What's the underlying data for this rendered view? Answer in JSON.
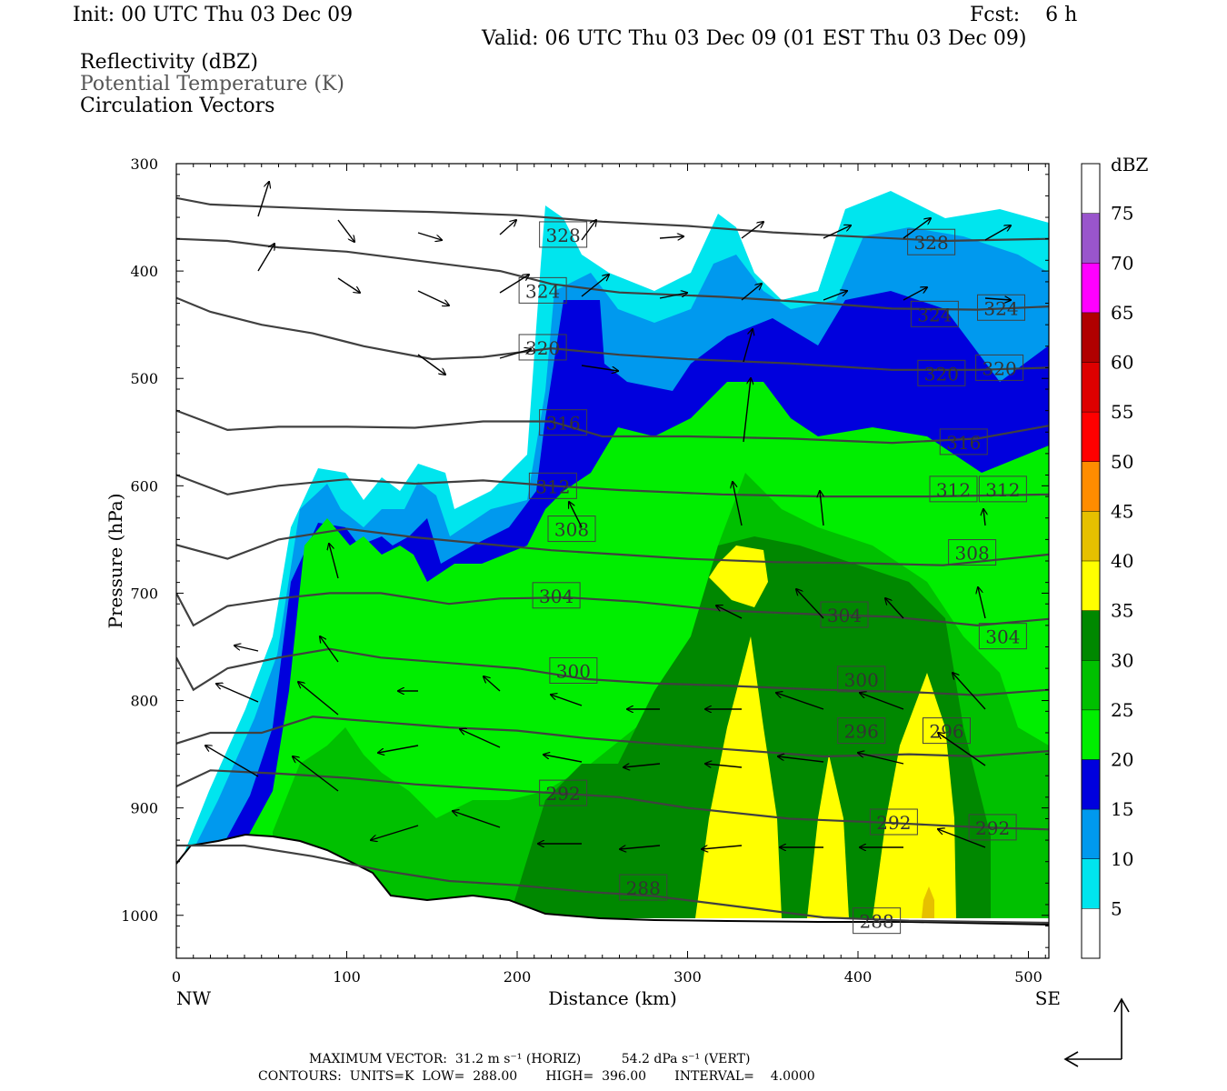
{
  "header": {
    "init": "Init: 00 UTC Thu 03 Dec 09",
    "fcst": "Fcst:    6 h",
    "valid": "Valid: 06 UTC Thu 03 Dec 09 (01 EST Thu 03 Dec 09)",
    "fields": [
      "Reflectivity (dBZ)",
      "Potential Temperature (K)",
      "Circulation Vectors"
    ],
    "field_colors": [
      "#000000",
      "#555555",
      "#000000"
    ]
  },
  "footer": {
    "line1": "MAXIMUM VECTOR:  31.2 m s⁻¹ (HORIZ)          54.2 dPa s⁻¹ (VERT)",
    "line2": "CONTOURS:  UNITS=K  LOW=  288.00       HIGH=  396.00       INTERVAL=    4.0000"
  },
  "chart_data": {
    "type": "cross-section",
    "xlabel": "Distance (km)",
    "ylabel": "Pressure (hPa)",
    "xlim": [
      0,
      512
    ],
    "ylim": [
      1040,
      300
    ],
    "x_ticks": [
      0,
      100,
      200,
      300,
      400,
      500
    ],
    "y_ticks": [
      300,
      400,
      500,
      600,
      700,
      800,
      900,
      1000
    ],
    "left_end_label": "NW",
    "right_end_label": "SE",
    "colorbar": {
      "title": "dBZ",
      "levels": [
        5,
        10,
        15,
        20,
        25,
        30,
        35,
        40,
        45,
        50,
        55,
        60,
        65,
        70,
        75
      ],
      "colors": [
        "#ffffff",
        "#00e5ee",
        "#0099ee",
        "#0000dd",
        "#00ee00",
        "#00c000",
        "#008800",
        "#ffff00",
        "#e6c000",
        "#ff8c00",
        "#ff0000",
        "#dd0000",
        "#b00000",
        "#ff00ff",
        "#9955cc",
        "#ffffff"
      ]
    },
    "theta_contours": [
      {
        "label": "328",
        "points": [
          [
            0,
            332
          ],
          [
            20,
            338
          ],
          [
            50,
            340
          ],
          [
            100,
            343
          ],
          [
            150,
            345
          ],
          [
            200,
            348
          ],
          [
            250,
            354
          ],
          [
            300,
            358
          ],
          [
            350,
            364
          ],
          [
            400,
            368
          ],
          [
            450,
            372
          ],
          [
            512,
            370
          ]
        ],
        "label_positions": [
          [
            227,
            366
          ],
          [
            443,
            373
          ]
        ]
      },
      {
        "label": "324",
        "points": [
          [
            0,
            370
          ],
          [
            30,
            372
          ],
          [
            60,
            378
          ],
          [
            100,
            382
          ],
          [
            150,
            392
          ],
          [
            190,
            400
          ],
          [
            220,
            412
          ],
          [
            260,
            420
          ],
          [
            320,
            424
          ],
          [
            380,
            430
          ],
          [
            420,
            435
          ],
          [
            470,
            436
          ],
          [
            512,
            433
          ]
        ],
        "label_positions": [
          [
            215,
            418
          ],
          [
            445,
            440
          ],
          [
            484,
            434
          ]
        ]
      },
      {
        "label": "320",
        "points": [
          [
            0,
            425
          ],
          [
            20,
            438
          ],
          [
            50,
            450
          ],
          [
            80,
            458
          ],
          [
            110,
            470
          ],
          [
            150,
            482
          ],
          [
            180,
            480
          ],
          [
            220,
            472
          ],
          [
            260,
            478
          ],
          [
            300,
            482
          ],
          [
            360,
            486
          ],
          [
            420,
            492
          ],
          [
            470,
            492
          ],
          [
            512,
            490
          ]
        ],
        "label_positions": [
          [
            215,
            471
          ],
          [
            449,
            495
          ],
          [
            483,
            490
          ]
        ]
      },
      {
        "label": "316",
        "points": [
          [
            0,
            530
          ],
          [
            30,
            548
          ],
          [
            60,
            545
          ],
          [
            100,
            545
          ],
          [
            140,
            546
          ],
          [
            180,
            540
          ],
          [
            220,
            540
          ],
          [
            250,
            554
          ],
          [
            300,
            554
          ],
          [
            360,
            556
          ],
          [
            420,
            560
          ],
          [
            470,
            556
          ],
          [
            512,
            544
          ]
        ],
        "label_positions": [
          [
            227,
            541
          ],
          [
            462,
            559
          ]
        ]
      },
      {
        "label": "312",
        "points": [
          [
            0,
            590
          ],
          [
            30,
            608
          ],
          [
            60,
            600
          ],
          [
            100,
            594
          ],
          [
            140,
            598
          ],
          [
            180,
            595
          ],
          [
            220,
            600
          ],
          [
            260,
            604
          ],
          [
            320,
            608
          ],
          [
            380,
            610
          ],
          [
            440,
            610
          ],
          [
            512,
            608
          ]
        ],
        "label_positions": [
          [
            221,
            600
          ],
          [
            456,
            603
          ],
          [
            485,
            603
          ]
        ]
      },
      {
        "label": "308",
        "points": [
          [
            0,
            655
          ],
          [
            30,
            668
          ],
          [
            60,
            650
          ],
          [
            100,
            640
          ],
          [
            140,
            648
          ],
          [
            180,
            654
          ],
          [
            220,
            660
          ],
          [
            260,
            664
          ],
          [
            300,
            668
          ],
          [
            350,
            671
          ],
          [
            400,
            672
          ],
          [
            450,
            674
          ],
          [
            512,
            664
          ]
        ],
        "label_positions": [
          [
            232,
            640
          ],
          [
            467,
            662
          ]
        ]
      },
      {
        "label": "304",
        "points": [
          [
            0,
            700
          ],
          [
            10,
            730
          ],
          [
            30,
            712
          ],
          [
            60,
            705
          ],
          [
            90,
            700
          ],
          [
            120,
            700
          ],
          [
            160,
            710
          ],
          [
            190,
            705
          ],
          [
            230,
            704
          ],
          [
            270,
            708
          ],
          [
            320,
            716
          ],
          [
            380,
            720
          ],
          [
            420,
            722
          ],
          [
            470,
            730
          ],
          [
            512,
            724
          ]
        ],
        "label_positions": [
          [
            223,
            702
          ],
          [
            392,
            720
          ],
          [
            485,
            740
          ]
        ]
      },
      {
        "label": "300",
        "points": [
          [
            0,
            760
          ],
          [
            10,
            790
          ],
          [
            30,
            770
          ],
          [
            60,
            760
          ],
          [
            90,
            752
          ],
          [
            120,
            760
          ],
          [
            160,
            765
          ],
          [
            200,
            770
          ],
          [
            240,
            780
          ],
          [
            280,
            784
          ],
          [
            320,
            786
          ],
          [
            380,
            790
          ],
          [
            430,
            792
          ],
          [
            470,
            795
          ],
          [
            512,
            790
          ]
        ],
        "label_positions": [
          [
            233,
            772
          ],
          [
            402,
            780
          ]
        ]
      },
      {
        "label": "296",
        "points": [
          [
            0,
            840
          ],
          [
            20,
            830
          ],
          [
            50,
            830
          ],
          [
            80,
            815
          ],
          [
            120,
            820
          ],
          [
            160,
            825
          ],
          [
            200,
            828
          ],
          [
            240,
            835
          ],
          [
            280,
            840
          ],
          [
            320,
            845
          ],
          [
            380,
            852
          ],
          [
            430,
            850
          ],
          [
            470,
            852
          ],
          [
            512,
            847
          ]
        ],
        "label_positions": [
          [
            402,
            828
          ],
          [
            452,
            828
          ]
        ]
      },
      {
        "label": "292",
        "points": [
          [
            0,
            880
          ],
          [
            20,
            865
          ],
          [
            60,
            868
          ],
          [
            100,
            872
          ],
          [
            140,
            878
          ],
          [
            180,
            882
          ],
          [
            220,
            886
          ],
          [
            260,
            890
          ],
          [
            300,
            900
          ],
          [
            360,
            910
          ],
          [
            420,
            914
          ],
          [
            470,
            918
          ],
          [
            512,
            920
          ]
        ],
        "label_positions": [
          [
            227,
            886
          ],
          [
            421,
            913
          ],
          [
            479,
            918
          ]
        ]
      },
      {
        "label": "288",
        "points": [
          [
            0,
            935
          ],
          [
            40,
            935
          ],
          [
            80,
            945
          ],
          [
            120,
            958
          ],
          [
            160,
            968
          ],
          [
            200,
            972
          ],
          [
            240,
            978
          ],
          [
            280,
            982
          ],
          [
            320,
            990
          ],
          [
            380,
            1002
          ],
          [
            430,
            1005
          ],
          [
            512,
            1007
          ]
        ],
        "label_positions": [
          [
            274,
            974
          ],
          [
            411,
            1005
          ]
        ]
      }
    ]
  }
}
